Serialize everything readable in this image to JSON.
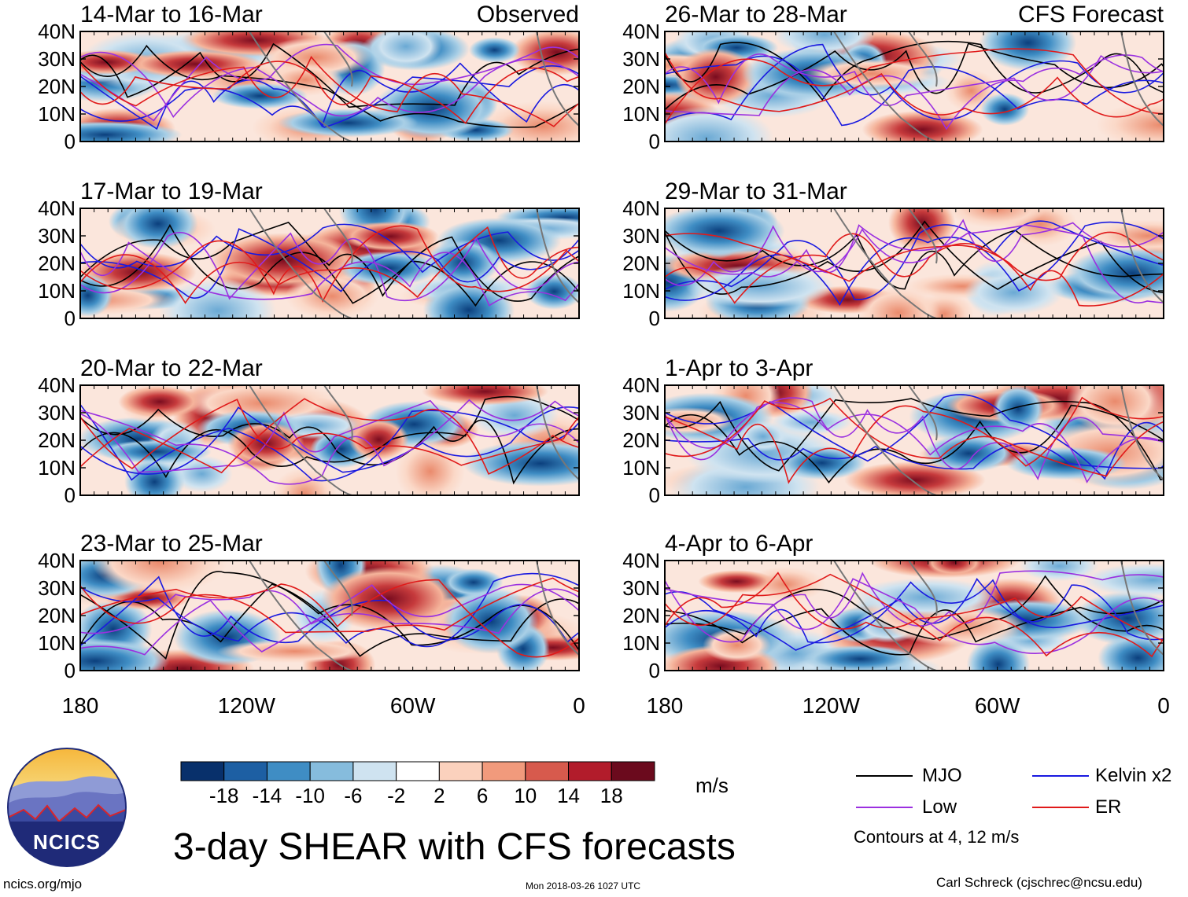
{
  "chart_data": {
    "type": "heatmap",
    "title": "3-day SHEAR with CFS forecasts",
    "units": "m/s",
    "xlabel": "",
    "ylabel": "",
    "x_ticks": [
      "180",
      "120W",
      "60W",
      "0"
    ],
    "y_ticks": [
      "40N",
      "30N",
      "20N",
      "10N",
      "0"
    ],
    "colorbar": {
      "levels": [
        "-18",
        "-14",
        "-10",
        "-6",
        "-2",
        "2",
        "6",
        "10",
        "14",
        "18"
      ],
      "colors": [
        "#08306b",
        "#1d5fa3",
        "#3f8dc4",
        "#86bcdd",
        "#cfe3f0",
        "#ffffff",
        "#fbd1bd",
        "#f19a7c",
        "#d75a4d",
        "#b21c2b",
        "#6b0a1d"
      ]
    },
    "panels": [
      {
        "title": "14-Mar to 16-Mar",
        "label": "Observed"
      },
      {
        "title": "26-Mar to 28-Mar",
        "label": "CFS Forecast"
      },
      {
        "title": "17-Mar to 19-Mar",
        "label": ""
      },
      {
        "title": "29-Mar to 31-Mar",
        "label": ""
      },
      {
        "title": "20-Mar to 22-Mar",
        "label": ""
      },
      {
        "title": "1-Apr to 3-Apr",
        "label": ""
      },
      {
        "title": "23-Mar to 25-Mar",
        "label": ""
      },
      {
        "title": "4-Apr to 6-Apr",
        "label": ""
      }
    ],
    "legend": [
      {
        "name": "MJO",
        "color": "#000000"
      },
      {
        "name": "Kelvin x2",
        "color": "#1a1ae0"
      },
      {
        "name": "Low",
        "color": "#9b30e0"
      },
      {
        "name": "ER",
        "color": "#e01a1a"
      }
    ],
    "contour_note": "Contours at 4, 12 m/s"
  },
  "logo_text": "NCICS",
  "footer": {
    "left": "ncics.org/mjo",
    "center": "Mon 2018-03-26 1027 UTC",
    "right": "Carl Schreck (cjschrec@ncsu.edu)"
  }
}
